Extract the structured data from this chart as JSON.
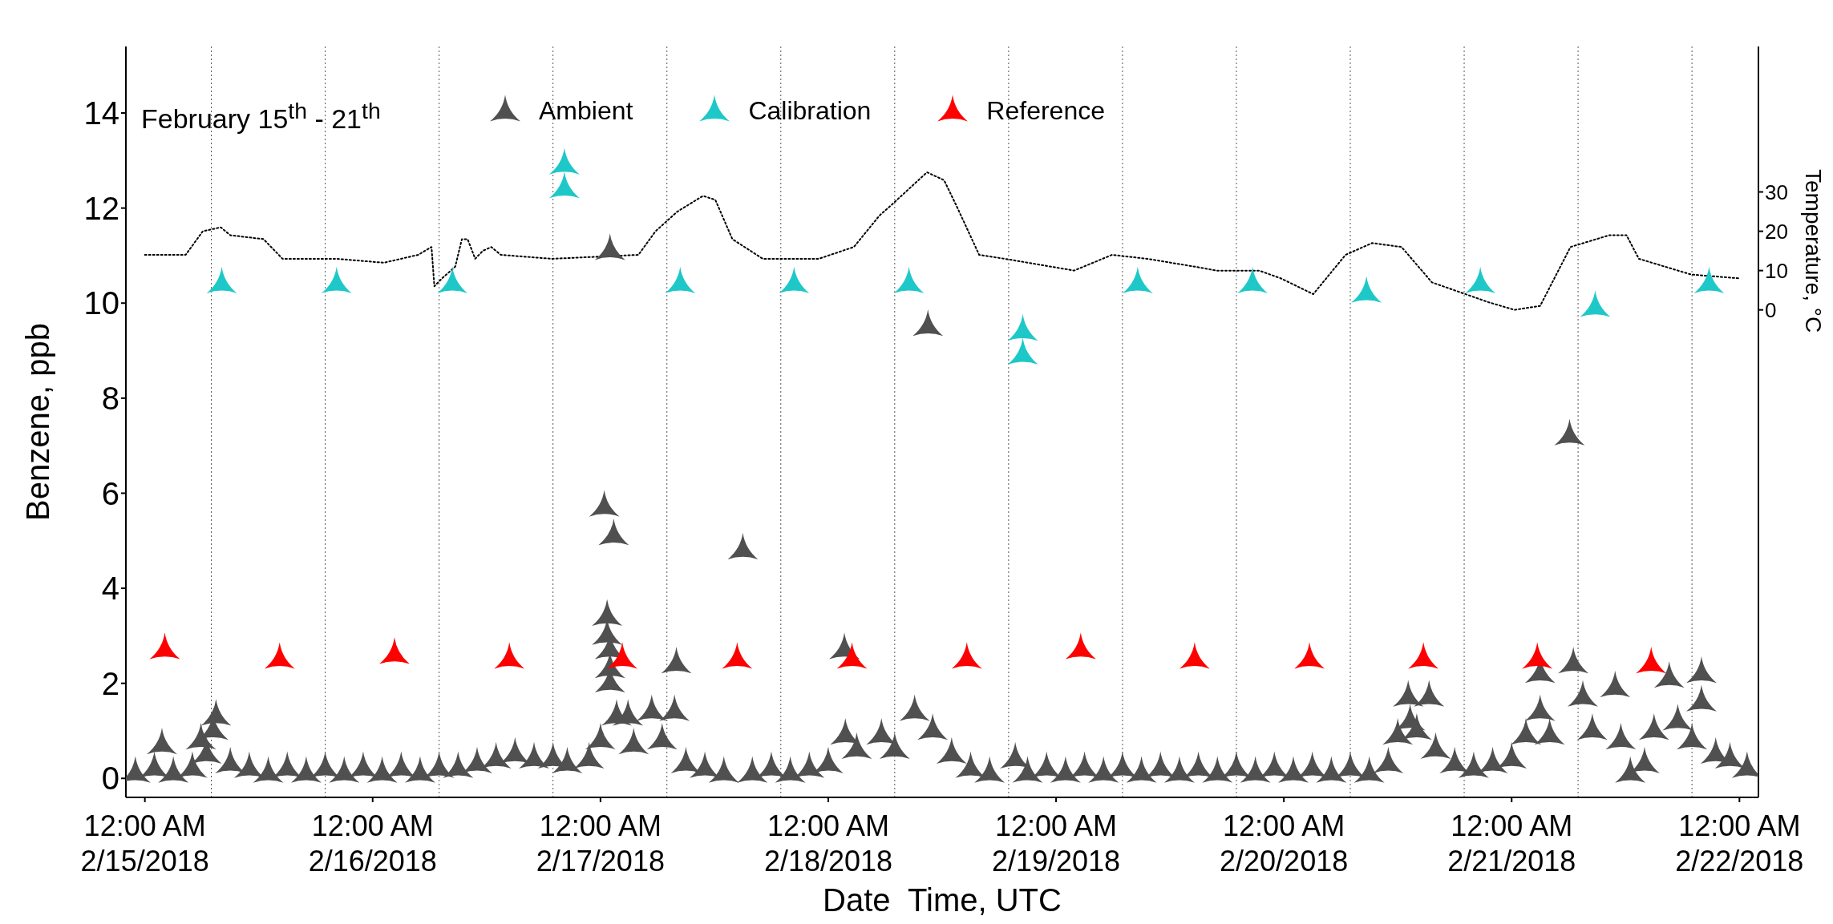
{
  "chart_data": {
    "type": "scatter",
    "title": "February 15$^{th}$ - 21$^{th}$",
    "xlabel": "Date  Time, UTC",
    "ylabel": "Benzene, ppb",
    "y2label": "Temperature, °C",
    "xlim": [
      "2018-02-14T22:00",
      "2018-02-22T02:00"
    ],
    "xticks": [
      {
        "value": "2018-02-15",
        "label": "12:00 AM\n2/15/2018"
      },
      {
        "value": "2018-02-16",
        "label": "12:00 AM\n2/16/2018"
      },
      {
        "value": "2018-02-17",
        "label": "12:00 AM\n2/17/2018"
      },
      {
        "value": "2018-02-18",
        "label": "12:00 AM\n2/18/2018"
      },
      {
        "value": "2018-02-19",
        "label": "12:00 AM\n2/19/2018"
      },
      {
        "value": "2018-02-20",
        "label": "12:00 AM\n2/20/2018"
      },
      {
        "value": "2018-02-21",
        "label": "12:00 AM\n2/21/2018"
      },
      {
        "value": "2018-02-22",
        "label": "12:00 AM\n2/22/2018"
      }
    ],
    "ylim": [
      -0.4,
      15.4
    ],
    "yticks": [
      0,
      2,
      4,
      6,
      8,
      10,
      12,
      14
    ],
    "y2lim": [
      -124,
      67
    ],
    "y2ticks": [
      0,
      10,
      20,
      30
    ],
    "legend": "top",
    "marker": "triangle",
    "ref_lines": [
      {
        "axis": "x",
        "value": "2018-02-15T07:00",
        "line_style": "dotted"
      },
      {
        "axis": "x",
        "value": "2018-02-15T19:00",
        "line_style": "dotted"
      },
      {
        "axis": "x",
        "value": "2018-02-16T07:00",
        "line_style": "dotted"
      },
      {
        "axis": "x",
        "value": "2018-02-16T19:00",
        "line_style": "dotted"
      },
      {
        "axis": "x",
        "value": "2018-02-17T07:00",
        "line_style": "dotted"
      },
      {
        "axis": "x",
        "value": "2018-02-17T19:00",
        "line_style": "dotted"
      },
      {
        "axis": "x",
        "value": "2018-02-18T07:00",
        "line_style": "dotted"
      },
      {
        "axis": "x",
        "value": "2018-02-18T19:00",
        "line_style": "dotted"
      },
      {
        "axis": "x",
        "value": "2018-02-19T07:00",
        "line_style": "dotted"
      },
      {
        "axis": "x",
        "value": "2018-02-19T19:00",
        "line_style": "dotted"
      },
      {
        "axis": "x",
        "value": "2018-02-20T07:00",
        "line_style": "dotted"
      },
      {
        "axis": "x",
        "value": "2018-02-20T19:00",
        "line_style": "dotted"
      },
      {
        "axis": "x",
        "value": "2018-02-21T07:00",
        "line_style": "dotted"
      },
      {
        "axis": "x",
        "value": "2018-02-21T19:00",
        "line_style": "dotted"
      }
    ],
    "series": [
      {
        "type": "line",
        "axis": "y2",
        "color": "#000000",
        "line_style": "dotted",
        "marker": "none",
        "x": [
          "2018-02-15T00:00",
          "2018-02-15T04:18",
          "2018-02-15T06:06",
          "2018-02-15T08:00",
          "2018-02-15T09:00",
          "2018-02-15T12:30",
          "2018-02-15T14:30",
          "2018-02-15T20:12",
          "2018-02-16T01:12",
          "2018-02-16T04:48",
          "2018-02-16T06:12",
          "2018-02-16T06:30",
          "2018-02-16T07:18",
          "2018-02-16T08:42",
          "2018-02-16T09:24",
          "2018-02-16T10:00",
          "2018-02-16T10:48",
          "2018-02-16T11:36",
          "2018-02-16T12:30",
          "2018-02-16T13:30",
          "2018-02-16T18:54",
          "2018-02-17T04:00",
          "2018-02-17T05:48",
          "2018-02-17T08:06",
          "2018-02-17T10:48",
          "2018-02-17T12:06",
          "2018-02-17T13:54",
          "2018-02-17T17:06",
          "2018-02-17T23:00",
          "2018-02-18T02:42",
          "2018-02-18T05:24",
          "2018-02-18T06:48",
          "2018-02-18T10:24",
          "2018-02-18T12:12",
          "2018-02-18T13:36",
          "2018-02-18T15:54",
          "2018-02-18T18:36",
          "2018-02-19T01:54",
          "2018-02-19T05:54",
          "2018-02-19T09:36",
          "2018-02-19T14:36",
          "2018-02-19T16:54",
          "2018-02-19T21:24",
          "2018-02-19T23:42",
          "2018-02-20T03:06",
          "2018-02-20T06:30",
          "2018-02-20T09:18",
          "2018-02-20T12:24",
          "2018-02-20T15:36",
          "2018-02-20T21:30",
          "2018-02-21T00:18",
          "2018-02-21T03:00",
          "2018-02-21T06:12",
          "2018-02-21T10:18",
          "2018-02-21T12:06",
          "2018-02-21T13:24",
          "2018-02-21T18:54",
          "2018-02-22T00:06"
        ],
        "values": [
          14,
          14,
          20,
          21,
          19,
          18,
          13,
          13,
          12,
          14,
          16,
          6,
          8,
          11,
          18,
          18,
          13,
          15,
          16,
          14,
          13,
          14,
          20,
          25,
          29,
          28,
          18,
          13,
          13,
          16,
          24,
          27,
          35,
          33,
          26,
          14,
          13,
          10,
          14,
          13,
          11,
          10,
          10,
          8,
          4,
          14,
          17,
          16,
          7,
          2,
          0,
          1,
          16,
          19,
          19,
          13,
          9,
          8
        ]
      },
      {
        "name": "Ambient",
        "color": "#505050",
        "x": [
          "2018-02-14T23:00",
          "2018-02-15T01:00",
          "2018-02-15T01:48",
          "2018-02-15T03:00",
          "2018-02-15T05:00",
          "2018-02-15T05:54",
          "2018-02-15T06:30",
          "2018-02-15T07:12",
          "2018-02-15T07:30",
          "2018-02-15T09:00",
          "2018-02-15T11:00",
          "2018-02-15T13:00",
          "2018-02-15T15:00",
          "2018-02-15T17:00",
          "2018-02-15T19:00",
          "2018-02-15T21:00",
          "2018-02-15T23:00",
          "2018-02-16T01:00",
          "2018-02-16T03:00",
          "2018-02-16T05:00",
          "2018-02-16T07:00",
          "2018-02-16T09:00",
          "2018-02-16T11:00",
          "2018-02-16T13:00",
          "2018-02-16T15:00",
          "2018-02-16T17:00",
          "2018-02-16T19:00",
          "2018-02-16T20:30",
          "2018-02-16T22:48",
          "2018-02-17T00:00",
          "2018-02-17T00:24",
          "2018-02-17T00:42",
          "2018-02-17T00:42",
          "2018-02-17T01:00",
          "2018-02-17T01:00",
          "2018-02-17T01:00",
          "2018-02-17T01:00",
          "2018-02-17T01:24",
          "2018-02-17T01:42",
          "2018-02-17T02:54",
          "2018-02-17T03:30",
          "2018-02-17T05:24",
          "2018-02-17T06:30",
          "2018-02-17T07:48",
          "2018-02-17T08:00",
          "2018-02-17T09:00",
          "2018-02-17T11:00",
          "2018-02-17T13:00",
          "2018-02-17T15:00",
          "2018-02-17T16:00",
          "2018-02-17T18:00",
          "2018-02-17T20:00",
          "2018-02-17T22:00",
          "2018-02-18T00:00",
          "2018-02-18T01:42",
          "2018-02-18T01:48",
          "2018-02-18T03:00",
          "2018-02-18T05:36",
          "2018-02-18T07:00",
          "2018-02-18T09:06",
          "2018-02-18T10:30",
          "2018-02-18T11:00",
          "2018-02-18T13:00",
          "2018-02-18T15:00",
          "2018-02-18T17:00",
          "2018-02-18T19:42",
          "2018-02-18T21:00",
          "2018-02-18T23:00",
          "2018-02-19T01:00",
          "2018-02-19T03:00",
          "2018-02-19T05:00",
          "2018-02-19T07:00",
          "2018-02-19T09:00",
          "2018-02-19T11:00",
          "2018-02-19T13:00",
          "2018-02-19T15:00",
          "2018-02-19T17:00",
          "2018-02-19T19:00",
          "2018-02-19T21:00",
          "2018-02-19T23:00",
          "2018-02-20T01:00",
          "2018-02-20T03:00",
          "2018-02-20T05:00",
          "2018-02-20T07:00",
          "2018-02-20T09:00",
          "2018-02-20T11:00",
          "2018-02-20T12:00",
          "2018-02-20T13:06",
          "2018-02-20T13:18",
          "2018-02-20T14:00",
          "2018-02-20T15:18",
          "2018-02-20T16:00",
          "2018-02-20T18:00",
          "2018-02-20T20:00",
          "2018-02-20T22:00",
          "2018-02-21T00:00",
          "2018-02-21T01:30",
          "2018-02-21T03:00",
          "2018-02-21T03:00",
          "2018-02-21T04:00",
          "2018-02-21T06:06",
          "2018-02-21T06:30",
          "2018-02-21T07:30",
          "2018-02-21T08:30",
          "2018-02-21T10:54",
          "2018-02-21T11:30",
          "2018-02-21T12:30",
          "2018-02-21T14:00",
          "2018-02-21T15:00",
          "2018-02-21T16:36",
          "2018-02-21T17:30",
          "2018-02-21T19:00",
          "2018-02-21T20:00",
          "2018-02-21T20:00",
          "2018-02-21T21:30",
          "2018-02-21T23:00",
          "2018-02-22T00:48"
        ],
        "values": [
          0.1,
          0.2,
          0.7,
          0.1,
          0.2,
          0.8,
          0.5,
          1.0,
          1.3,
          0.3,
          0.2,
          0.1,
          0.2,
          0.1,
          0.2,
          0.1,
          0.2,
          0.1,
          0.2,
          0.1,
          0.2,
          0.2,
          0.3,
          0.4,
          0.5,
          0.4,
          0.4,
          0.3,
          0.4,
          0.8,
          5.7,
          3.4,
          3.0,
          11.1,
          2.7,
          2.3,
          2.0,
          5.1,
          1.3,
          1.3,
          0.7,
          1.4,
          0.8,
          1.4,
          2.4,
          0.3,
          0.2,
          0.1,
          4.8,
          0.1,
          0.2,
          0.1,
          0.2,
          0.3,
          2.7,
          0.9,
          0.6,
          0.9,
          0.6,
          1.4,
          9.5,
          1.0,
          0.5,
          0.2,
          0.1,
          0.4,
          0.1,
          0.2,
          0.1,
          0.2,
          0.1,
          0.2,
          0.1,
          0.2,
          0.1,
          0.2,
          0.1,
          0.2,
          0.1,
          0.2,
          0.1,
          0.2,
          0.1,
          0.2,
          0.1,
          0.3,
          0.9,
          1.7,
          1.2,
          1.0,
          1.7,
          0.6,
          0.3,
          0.2,
          0.3,
          0.4,
          0.9,
          2.2,
          1.4,
          0.9,
          7.2,
          2.4,
          1.7,
          1.0,
          1.9,
          0.8,
          0.1,
          0.3,
          1.0,
          2.1,
          1.2,
          0.8,
          2.2,
          1.6,
          0.5,
          0.4,
          0.2
        ]
      },
      {
        "name": "Calibration",
        "color": "#1ec8c8",
        "x": [
          "2018-02-15T08:06",
          "2018-02-15T20:12",
          "2018-02-16T08:24",
          "2018-02-16T20:12",
          "2018-02-16T20:12",
          "2018-02-17T08:24",
          "2018-02-17T20:24",
          "2018-02-18T08:30",
          "2018-02-18T20:30",
          "2018-02-18T20:30",
          "2018-02-19T08:36",
          "2018-02-19T20:42",
          "2018-02-20T08:42",
          "2018-02-20T20:42",
          "2018-02-21T08:48",
          "2018-02-21T20:48"
        ],
        "values": [
          10.4,
          10.4,
          10.4,
          12.9,
          12.4,
          10.4,
          10.4,
          10.4,
          9.4,
          8.9,
          10.4,
          10.4,
          10.2,
          10.4,
          9.9,
          10.4
        ]
      },
      {
        "name": "Reference",
        "color": "#ff0000",
        "x": [
          "2018-02-15T02:06",
          "2018-02-15T14:12",
          "2018-02-16T02:18",
          "2018-02-16T14:24",
          "2018-02-17T02:18",
          "2018-02-17T14:24",
          "2018-02-18T02:30",
          "2018-02-18T14:36",
          "2018-02-19T02:36",
          "2018-02-19T14:36",
          "2018-02-20T02:42",
          "2018-02-20T14:42",
          "2018-02-21T02:42",
          "2018-02-21T14:42"
        ],
        "values": [
          2.7,
          2.5,
          2.6,
          2.5,
          2.5,
          2.5,
          2.5,
          2.5,
          2.7,
          2.5,
          2.5,
          2.5,
          2.5,
          2.4
        ]
      }
    ]
  }
}
